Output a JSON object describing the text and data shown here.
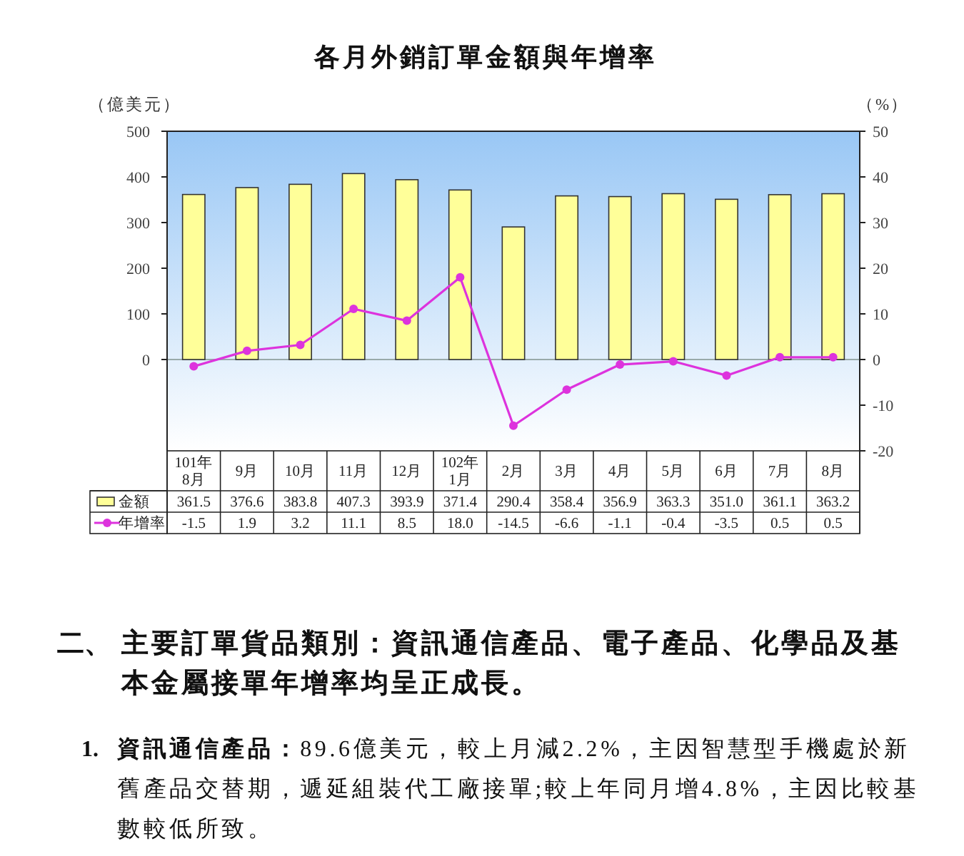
{
  "chart_data": {
    "type": "bar",
    "title": "各月外銷訂單金額與年增率",
    "ylabel": "（億美元）",
    "y2label": "（%）",
    "categories": [
      "101年\n8月",
      "9月",
      "10月",
      "11月",
      "12月",
      "102年\n1月",
      "2月",
      "3月",
      "4月",
      "5月",
      "6月",
      "7月",
      "8月"
    ],
    "series": [
      {
        "name": "金額",
        "color": "#ffff99",
        "values": [
          361.5,
          376.6,
          383.8,
          407.3,
          393.9,
          371.4,
          290.4,
          358.4,
          356.9,
          363.3,
          351.0,
          361.1,
          363.2
        ],
        "value_labels": [
          "361.5",
          "376.6",
          "383.8",
          "407.3",
          "393.9",
          "371.4",
          "290.4",
          "358.4",
          "356.9",
          "363.3",
          "351.0",
          "361.1",
          "363.2"
        ]
      },
      {
        "name": "年增率",
        "type": "line",
        "axis": "y2",
        "color": "#dd33dd",
        "values": [
          -1.5,
          1.9,
          3.2,
          11.1,
          8.5,
          18.0,
          -14.5,
          -6.6,
          -1.1,
          -0.4,
          -3.5,
          0.5,
          0.5
        ],
        "value_labels": [
          "-1.5",
          "1.9",
          "3.2",
          "11.1",
          "8.5",
          "18.0",
          "-14.5",
          "-6.6",
          "-1.1",
          "-0.4",
          "-3.5",
          "0.5",
          "0.5"
        ]
      }
    ],
    "ylim": [
      -200,
      500
    ],
    "yticks": [
      0,
      100,
      200,
      300,
      400,
      500
    ],
    "y2lim": [
      -20,
      50
    ],
    "y2ticks": [
      -20,
      -10,
      0,
      10,
      20,
      30,
      40,
      50
    ],
    "marker": "circle",
    "legend": "bottom left",
    "annotations": [
      "二、 主要訂單貨品類別：資訊通信產品、電子產品、化學品及基本金屬接單年增率均呈正成長。",
      "1. 資訊通信產品：89.6億美元，較上月減2.2%，主因智慧型手機處於新舊產品交替期，遞延組裝代工廠接單;較上年同月增4.8%，主因比較基數較低所致。"
    ]
  }
}
